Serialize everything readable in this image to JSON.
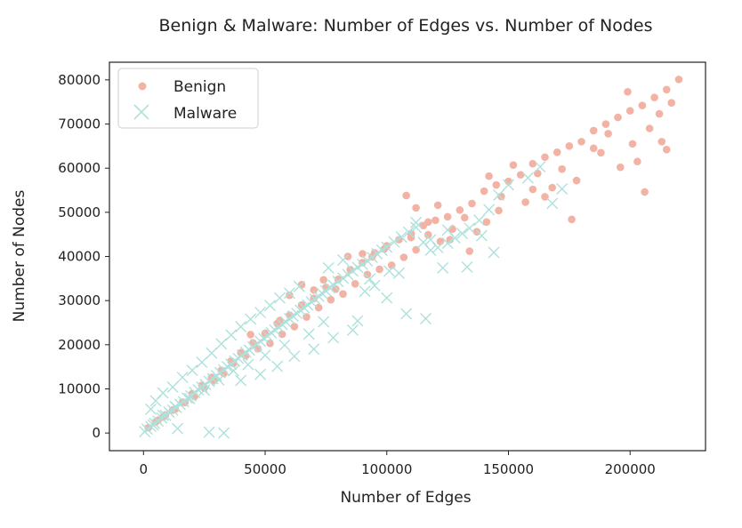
{
  "chart_data": {
    "type": "scatter",
    "title": "Benign & Malware: Number of Edges vs. Number of Nodes",
    "xlabel": "Number of Edges",
    "ylabel": "Number of Nodes",
    "xlim": [
      -14000,
      231000
    ],
    "ylim": [
      -4000,
      84000
    ],
    "xticks": [
      0,
      50000,
      100000,
      150000,
      200000
    ],
    "yticks": [
      0,
      10000,
      20000,
      30000,
      40000,
      50000,
      60000,
      70000,
      80000
    ],
    "grid": false,
    "legend_position": "top-left",
    "series": [
      {
        "name": "Benign",
        "marker": "circle",
        "color": "#f2b2a4",
        "points": [
          [
            2000,
            1200
          ],
          [
            5000,
            2500
          ],
          [
            8000,
            3600
          ],
          [
            12000,
            5200
          ],
          [
            16000,
            7000
          ],
          [
            20000,
            8900
          ],
          [
            24000,
            10800
          ],
          [
            28000,
            12600
          ],
          [
            32000,
            14200
          ],
          [
            36000,
            16300
          ],
          [
            40000,
            18200
          ],
          [
            45000,
            20400
          ],
          [
            50000,
            22600
          ],
          [
            55000,
            24800
          ],
          [
            60000,
            26700
          ],
          [
            65000,
            29000
          ],
          [
            70000,
            30500
          ],
          [
            75000,
            33000
          ],
          [
            80000,
            34800
          ],
          [
            85000,
            37000
          ],
          [
            90000,
            38600
          ],
          [
            95000,
            40800
          ],
          [
            100000,
            42400
          ],
          [
            105000,
            43800
          ],
          [
            110000,
            45200
          ],
          [
            115000,
            47000
          ],
          [
            120000,
            48200
          ],
          [
            125000,
            49000
          ],
          [
            130000,
            50500
          ],
          [
            135000,
            52000
          ],
          [
            140000,
            54800
          ],
          [
            145000,
            56200
          ],
          [
            150000,
            57000
          ],
          [
            155000,
            58500
          ],
          [
            160000,
            61000
          ],
          [
            165000,
            62500
          ],
          [
            170000,
            63600
          ],
          [
            175000,
            65000
          ],
          [
            180000,
            66000
          ],
          [
            185000,
            68500
          ],
          [
            190000,
            70000
          ],
          [
            195000,
            71500
          ],
          [
            200000,
            73000
          ],
          [
            205000,
            74200
          ],
          [
            210000,
            76000
          ],
          [
            215000,
            77800
          ],
          [
            220000,
            80100
          ],
          [
            217000,
            74800
          ],
          [
            212000,
            72300
          ],
          [
            208000,
            69000
          ],
          [
            201000,
            65500
          ],
          [
            196000,
            60200
          ],
          [
            188000,
            63500
          ],
          [
            178000,
            57200
          ],
          [
            172000,
            59800
          ],
          [
            168000,
            55600
          ],
          [
            162000,
            58800
          ],
          [
            157000,
            52300
          ],
          [
            152000,
            60700
          ],
          [
            146000,
            50400
          ],
          [
            141000,
            47800
          ],
          [
            137000,
            45600
          ],
          [
            132000,
            48800
          ],
          [
            127000,
            46200
          ],
          [
            122000,
            43400
          ],
          [
            117000,
            44900
          ],
          [
            112000,
            41500
          ],
          [
            107000,
            39800
          ],
          [
            102000,
            38000
          ],
          [
            97000,
            37100
          ],
          [
            92000,
            35900
          ],
          [
            87000,
            33800
          ],
          [
            82000,
            31500
          ],
          [
            77000,
            30200
          ],
          [
            72000,
            28400
          ],
          [
            67000,
            26300
          ],
          [
            62000,
            24100
          ],
          [
            57000,
            22400
          ],
          [
            52000,
            20300
          ],
          [
            47000,
            19100
          ],
          [
            42000,
            17500
          ],
          [
            37000,
            15800
          ],
          [
            33000,
            13500
          ],
          [
            29000,
            11900
          ],
          [
            25000,
            10200
          ],
          [
            21000,
            8300
          ],
          [
            17000,
            6900
          ],
          [
            13000,
            5400
          ],
          [
            9000,
            4100
          ],
          [
            6000,
            2900
          ],
          [
            108000,
            53800
          ],
          [
            112000,
            51000
          ],
          [
            117000,
            47800
          ],
          [
            94000,
            39900
          ],
          [
            60000,
            31200
          ],
          [
            65000,
            33600
          ],
          [
            74000,
            34700
          ],
          [
            84000,
            40000
          ],
          [
            176000,
            48400
          ],
          [
            206000,
            54600
          ],
          [
            203000,
            61500
          ],
          [
            213000,
            66000
          ],
          [
            199000,
            77300
          ],
          [
            185000,
            64500
          ],
          [
            191000,
            67800
          ],
          [
            215000,
            64200
          ],
          [
            160000,
            55200
          ],
          [
            147000,
            53600
          ],
          [
            142000,
            58200
          ],
          [
            165000,
            53500
          ],
          [
            134000,
            41200
          ],
          [
            126000,
            43800
          ],
          [
            121000,
            51600
          ],
          [
            110000,
            44300
          ],
          [
            99000,
            41700
          ],
          [
            90000,
            40600
          ],
          [
            79000,
            32600
          ],
          [
            70000,
            32400
          ],
          [
            56000,
            25500
          ],
          [
            44000,
            22300
          ]
        ]
      },
      {
        "name": "Malware",
        "marker": "x",
        "color": "#aee1dc",
        "points": [
          [
            500,
            300
          ],
          [
            1500,
            900
          ],
          [
            3000,
            1500
          ],
          [
            4500,
            2200
          ],
          [
            6000,
            2700
          ],
          [
            7500,
            3400
          ],
          [
            9000,
            4000
          ],
          [
            10500,
            4700
          ],
          [
            12000,
            5200
          ],
          [
            13500,
            5800
          ],
          [
            15000,
            6500
          ],
          [
            16500,
            7100
          ],
          [
            18000,
            7900
          ],
          [
            19500,
            8400
          ],
          [
            21000,
            9200
          ],
          [
            22500,
            9800
          ],
          [
            24000,
            10400
          ],
          [
            25500,
            11000
          ],
          [
            27000,
            11700
          ],
          [
            28500,
            12300
          ],
          [
            30000,
            13000
          ],
          [
            31500,
            13700
          ],
          [
            33000,
            14300
          ],
          [
            34500,
            15000
          ],
          [
            36000,
            15600
          ],
          [
            37500,
            16300
          ],
          [
            39000,
            16900
          ],
          [
            40500,
            17600
          ],
          [
            42000,
            18300
          ],
          [
            43500,
            18800
          ],
          [
            45000,
            19500
          ],
          [
            46500,
            20100
          ],
          [
            48000,
            20800
          ],
          [
            49500,
            21400
          ],
          [
            51000,
            22000
          ],
          [
            52500,
            22700
          ],
          [
            54000,
            23300
          ],
          [
            55500,
            24000
          ],
          [
            57000,
            24600
          ],
          [
            58500,
            25200
          ],
          [
            60000,
            25900
          ],
          [
            61500,
            26500
          ],
          [
            63000,
            27100
          ],
          [
            64500,
            27800
          ],
          [
            66000,
            28400
          ],
          [
            67500,
            29000
          ],
          [
            69000,
            29700
          ],
          [
            70500,
            30300
          ],
          [
            72000,
            31000
          ],
          [
            73500,
            31600
          ],
          [
            75000,
            32200
          ],
          [
            76500,
            32900
          ],
          [
            78000,
            33500
          ],
          [
            80000,
            34300
          ],
          [
            82000,
            35100
          ],
          [
            84000,
            35900
          ],
          [
            86000,
            36700
          ],
          [
            88000,
            37500
          ],
          [
            90000,
            38200
          ],
          [
            92000,
            39000
          ],
          [
            94000,
            39800
          ],
          [
            96000,
            40600
          ],
          [
            98000,
            41400
          ],
          [
            100000,
            42100
          ],
          [
            103000,
            43300
          ],
          [
            106000,
            44400
          ],
          [
            109000,
            45500
          ],
          [
            112000,
            46600
          ],
          [
            115000,
            43200
          ],
          [
            118000,
            43800
          ],
          [
            121000,
            42000
          ],
          [
            125000,
            43000
          ],
          [
            128000,
            44200
          ],
          [
            131000,
            45200
          ],
          [
            134000,
            46400
          ],
          [
            138000,
            48200
          ],
          [
            142000,
            50600
          ],
          [
            146000,
            53900
          ],
          [
            150000,
            56200
          ],
          [
            158000,
            57800
          ],
          [
            163000,
            60300
          ],
          [
            168000,
            52000
          ],
          [
            172000,
            55300
          ],
          [
            133000,
            37600
          ],
          [
            123000,
            37400
          ],
          [
            116000,
            25900
          ],
          [
            108000,
            27000
          ],
          [
            100000,
            30600
          ],
          [
            95000,
            33400
          ],
          [
            88000,
            25400
          ],
          [
            86000,
            23300
          ],
          [
            78000,
            21600
          ],
          [
            70000,
            19000
          ],
          [
            62000,
            17400
          ],
          [
            55000,
            15100
          ],
          [
            48000,
            13300
          ],
          [
            40000,
            11900
          ],
          [
            33000,
            0
          ],
          [
            27000,
            200
          ],
          [
            14000,
            1000
          ],
          [
            3000,
            5400
          ],
          [
            5000,
            7300
          ],
          [
            8000,
            9100
          ],
          [
            12000,
            10400
          ],
          [
            16000,
            12600
          ],
          [
            20000,
            14200
          ],
          [
            24000,
            16000
          ],
          [
            28000,
            18100
          ],
          [
            32000,
            20200
          ],
          [
            36000,
            22200
          ],
          [
            40000,
            24100
          ],
          [
            44000,
            25800
          ],
          [
            48000,
            27300
          ],
          [
            52000,
            28900
          ],
          [
            56000,
            30600
          ],
          [
            60000,
            31700
          ],
          [
            64000,
            33200
          ],
          [
            76000,
            37400
          ],
          [
            82000,
            39200
          ],
          [
            93000,
            34900
          ],
          [
            105000,
            36200
          ],
          [
            112000,
            47700
          ],
          [
            139000,
            44700
          ],
          [
            144000,
            40900
          ],
          [
            125000,
            46000
          ],
          [
            118000,
            41400
          ],
          [
            101000,
            36700
          ],
          [
            91000,
            32100
          ],
          [
            74000,
            25200
          ],
          [
            68000,
            22400
          ],
          [
            58000,
            19900
          ],
          [
            50000,
            17600
          ],
          [
            43000,
            15500
          ],
          [
            37000,
            14100
          ],
          [
            31000,
            12000
          ],
          [
            25000,
            9700
          ],
          [
            19000,
            7800
          ],
          [
            13000,
            6000
          ],
          [
            8000,
            4000
          ],
          [
            4000,
            1800
          ]
        ]
      }
    ],
    "legend": [
      {
        "label": "Benign",
        "marker": "circle",
        "color": "#f2b2a4"
      },
      {
        "label": "Malware",
        "marker": "x",
        "color": "#aee1dc"
      }
    ]
  }
}
